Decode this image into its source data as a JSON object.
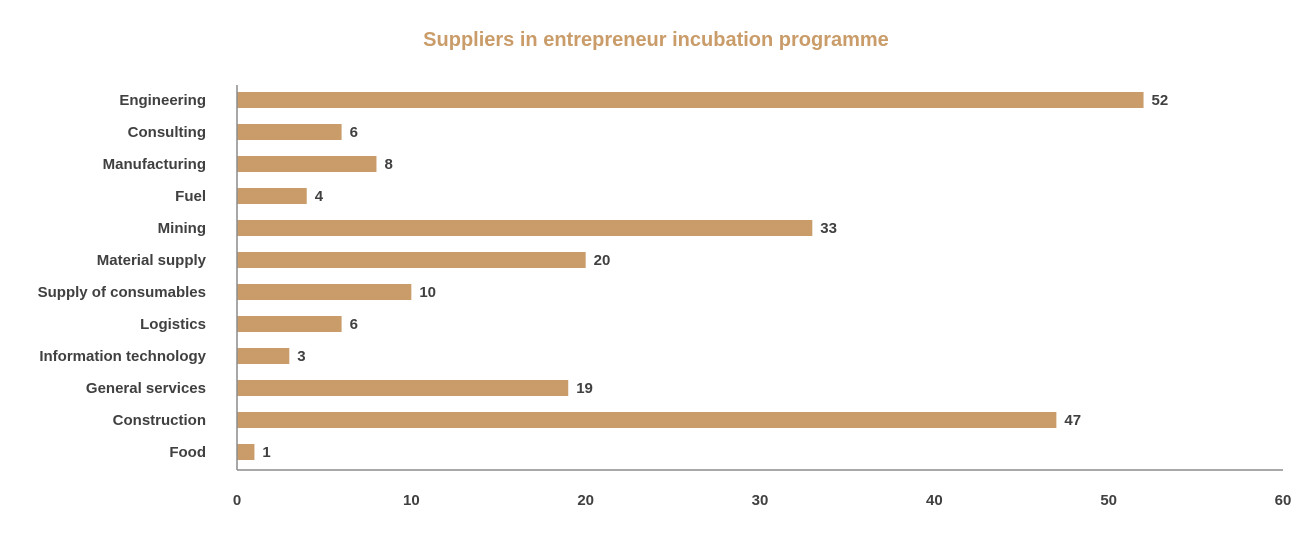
{
  "chart_data": {
    "type": "bar",
    "orientation": "horizontal",
    "title": "Suppliers in entrepreneur incubation programme",
    "xlabel": "",
    "ylabel": "",
    "categories": [
      "Engineering",
      "Consulting",
      "Manufacturing",
      "Fuel",
      "Mining",
      "Material supply",
      "Supply of consumables",
      "Logistics",
      "Information technology",
      "General services",
      "Construction",
      "Food"
    ],
    "values": [
      52,
      6,
      8,
      4,
      33,
      20,
      10,
      6,
      3,
      19,
      47,
      1
    ],
    "xlim": [
      0,
      60
    ],
    "x_ticks": [
      0,
      10,
      20,
      30,
      40,
      50,
      60
    ],
    "grid": false,
    "legend": "none",
    "data_labels": true
  },
  "colors": {
    "bar": "#c99c69",
    "title": "#c99c69",
    "text": "#404040",
    "axis": "#8c8c8c"
  }
}
